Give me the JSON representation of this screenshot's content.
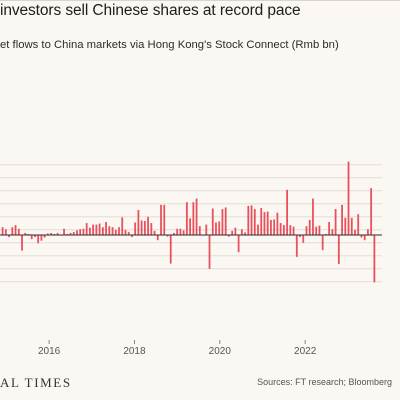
{
  "header": {
    "title": "investors sell Chinese shares at record pace",
    "subtitle": "et flows to China markets via Hong Kong's Stock Connect (Rmb bn)"
  },
  "footer": {
    "logo_text": "AL TIMES",
    "source": "Sources: FT research; Bloomberg"
  },
  "colors": {
    "background": "#fbf7f3",
    "bar": "#e8505b",
    "grid": "#e3ddd8",
    "zero_line": "#2b2b2b",
    "tick_label": "#555555"
  },
  "chart_data": {
    "type": "bar",
    "title": "",
    "xlabel": "",
    "ylabel": "",
    "x_ticks": [
      "2016",
      "2018",
      "2020",
      "2022"
    ],
    "ylim": [
      -180,
      280
    ],
    "x_range": [
      2014.85,
      2023.8
    ],
    "grid": "horizontal",
    "series": [
      {
        "values": [
          30,
          22,
          -8,
          30,
          38,
          24,
          -60,
          8,
          4,
          -16,
          -8,
          -32,
          -22,
          -10,
          6,
          8,
          4,
          8,
          0,
          24,
          4,
          8,
          12,
          18,
          22,
          24,
          46,
          28,
          40,
          40,
          44,
          30,
          50,
          34,
          30,
          20,
          30,
          68,
          20,
          12,
          -8,
          48,
          96,
          56,
          54,
          70,
          46,
          16,
          -20,
          116,
          116,
          -6,
          -110,
          8,
          24,
          24,
          18,
          126,
          64,
          126,
          140,
          34,
          0,
          40,
          -130,
          102,
          48,
          52,
          100,
          106,
          -6,
          16,
          28,
          -66,
          22,
          10,
          112,
          114,
          100,
          40,
          104,
          88,
          90,
          58,
          60,
          86,
          46,
          38,
          174,
          38,
          32,
          -84,
          -8,
          -30,
          34,
          58,
          140,
          32,
          36,
          -58,
          4,
          50,
          22,
          100,
          -112,
          116,
          66,
          282,
          66,
          20,
          80,
          -10,
          -20,
          22,
          180,
          -182
        ]
      }
    ]
  }
}
